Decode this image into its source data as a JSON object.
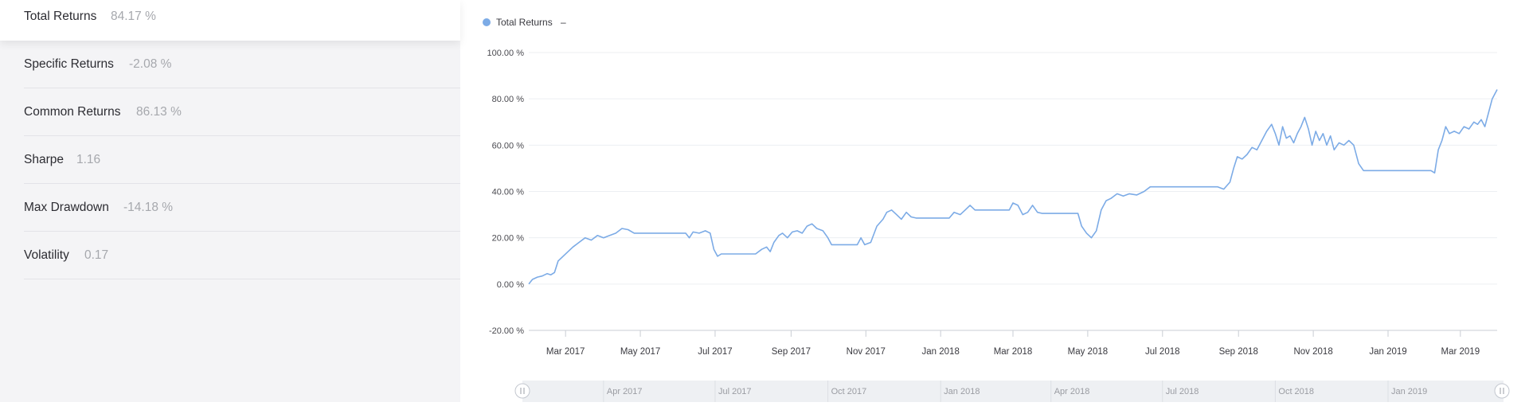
{
  "metrics": [
    {
      "label": "Total Returns",
      "value": "84.17 %"
    },
    {
      "label": "Specific Returns",
      "value": "-2.08 %"
    },
    {
      "label": "Common Returns",
      "value": "86.13 %"
    },
    {
      "label": "Sharpe",
      "value": "1.16"
    },
    {
      "label": "Max Drawdown",
      "value": "-14.18 %"
    },
    {
      "label": "Volatility",
      "value": "0.17"
    }
  ],
  "legend": {
    "label": "Total Returns",
    "suffix": "–"
  },
  "colors": {
    "series": "#7cabe6",
    "navigator": "#eef0f3",
    "grid": "#eceff2",
    "axis": "#c9cdd4"
  },
  "icons": {
    "legend_marker": "dot-icon",
    "handle": "drag-handle-icon"
  },
  "chart_data": {
    "type": "line",
    "title": "",
    "xlabel": "",
    "ylabel": "",
    "ylim": [
      -20,
      100
    ],
    "xlim": [
      "2017-01-30",
      "2019-03-31"
    ],
    "grid": true,
    "legend_position": "top-left",
    "y_ticks": [
      "100.00 %",
      "80.00 %",
      "60.00 %",
      "40.00 %",
      "20.00 %",
      "0.00 %",
      "-20.00 %"
    ],
    "y_tick_values": [
      100,
      80,
      60,
      40,
      20,
      0,
      -20
    ],
    "x_ticks": [
      {
        "date": "2017-03-01",
        "label": "Mar 2017"
      },
      {
        "date": "2017-05-01",
        "label": "May 2017"
      },
      {
        "date": "2017-07-01",
        "label": "Jul 2017"
      },
      {
        "date": "2017-09-01",
        "label": "Sep 2017"
      },
      {
        "date": "2017-11-01",
        "label": "Nov 2017"
      },
      {
        "date": "2018-01-01",
        "label": "Jan 2018"
      },
      {
        "date": "2018-03-01",
        "label": "Mar 2018"
      },
      {
        "date": "2018-05-01",
        "label": "May 2018"
      },
      {
        "date": "2018-07-01",
        "label": "Jul 2018"
      },
      {
        "date": "2018-09-01",
        "label": "Sep 2018"
      },
      {
        "date": "2018-11-01",
        "label": "Nov 2018"
      },
      {
        "date": "2019-01-01",
        "label": "Jan 2019"
      },
      {
        "date": "2019-03-01",
        "label": "Mar 2019"
      }
    ],
    "navigator_ticks": [
      {
        "date": "2017-04-01",
        "label": "Apr 2017"
      },
      {
        "date": "2017-07-01",
        "label": "Jul 2017"
      },
      {
        "date": "2017-10-01",
        "label": "Oct 2017"
      },
      {
        "date": "2018-01-01",
        "label": "Jan 2018"
      },
      {
        "date": "2018-04-01",
        "label": "Apr 2018"
      },
      {
        "date": "2018-07-01",
        "label": "Jul 2018"
      },
      {
        "date": "2018-10-01",
        "label": "Oct 2018"
      },
      {
        "date": "2019-01-01",
        "label": "Jan 2019"
      }
    ],
    "series": [
      {
        "name": "Total Returns",
        "color": "#7cabe6",
        "points": [
          [
            "2017-01-30",
            0
          ],
          [
            "2017-02-02",
            2
          ],
          [
            "2017-02-06",
            3
          ],
          [
            "2017-02-10",
            3.5
          ],
          [
            "2017-02-14",
            4.5
          ],
          [
            "2017-02-17",
            4
          ],
          [
            "2017-02-20",
            5
          ],
          [
            "2017-02-23",
            10
          ],
          [
            "2017-02-27",
            12
          ],
          [
            "2017-03-03",
            14
          ],
          [
            "2017-03-07",
            16
          ],
          [
            "2017-03-12",
            18
          ],
          [
            "2017-03-17",
            20
          ],
          [
            "2017-03-22",
            19
          ],
          [
            "2017-03-27",
            21
          ],
          [
            "2017-04-01",
            20
          ],
          [
            "2017-04-06",
            21
          ],
          [
            "2017-04-11",
            22
          ],
          [
            "2017-04-16",
            24
          ],
          [
            "2017-04-21",
            23.5
          ],
          [
            "2017-04-26",
            22
          ],
          [
            "2017-06-07",
            22
          ],
          [
            "2017-06-10",
            20
          ],
          [
            "2017-06-13",
            22.5
          ],
          [
            "2017-06-18",
            22
          ],
          [
            "2017-06-23",
            23
          ],
          [
            "2017-06-27",
            22
          ],
          [
            "2017-06-30",
            15
          ],
          [
            "2017-07-03",
            12
          ],
          [
            "2017-07-06",
            13
          ],
          [
            "2017-08-03",
            13
          ],
          [
            "2017-08-08",
            15
          ],
          [
            "2017-08-12",
            16
          ],
          [
            "2017-08-15",
            14
          ],
          [
            "2017-08-18",
            18
          ],
          [
            "2017-08-22",
            21
          ],
          [
            "2017-08-25",
            22
          ],
          [
            "2017-08-29",
            20
          ],
          [
            "2017-09-02",
            22.5
          ],
          [
            "2017-09-06",
            23
          ],
          [
            "2017-09-10",
            22
          ],
          [
            "2017-09-14",
            25
          ],
          [
            "2017-09-18",
            26
          ],
          [
            "2017-09-22",
            24
          ],
          [
            "2017-09-27",
            23
          ],
          [
            "2017-10-01",
            20
          ],
          [
            "2017-10-04",
            17
          ],
          [
            "2017-10-25",
            17
          ],
          [
            "2017-10-28",
            20
          ],
          [
            "2017-10-31",
            17
          ],
          [
            "2017-11-05",
            18
          ],
          [
            "2017-11-10",
            25
          ],
          [
            "2017-11-15",
            28
          ],
          [
            "2017-11-18",
            31
          ],
          [
            "2017-11-22",
            32
          ],
          [
            "2017-11-26",
            30
          ],
          [
            "2017-11-30",
            28
          ],
          [
            "2017-12-04",
            31
          ],
          [
            "2017-12-08",
            29
          ],
          [
            "2017-12-12",
            28.5
          ],
          [
            "2018-01-08",
            28.5
          ],
          [
            "2018-01-12",
            31
          ],
          [
            "2018-01-17",
            30
          ],
          [
            "2018-01-21",
            32
          ],
          [
            "2018-01-25",
            34
          ],
          [
            "2018-01-29",
            32
          ],
          [
            "2018-02-26",
            32
          ],
          [
            "2018-03-01",
            35
          ],
          [
            "2018-03-05",
            34
          ],
          [
            "2018-03-09",
            30
          ],
          [
            "2018-03-13",
            31
          ],
          [
            "2018-03-17",
            34
          ],
          [
            "2018-03-21",
            31
          ],
          [
            "2018-03-25",
            30.5
          ],
          [
            "2018-04-23",
            30.5
          ],
          [
            "2018-04-26",
            25
          ],
          [
            "2018-04-30",
            22
          ],
          [
            "2018-05-04",
            20
          ],
          [
            "2018-05-08",
            23
          ],
          [
            "2018-05-12",
            32
          ],
          [
            "2018-05-16",
            36
          ],
          [
            "2018-05-20",
            37
          ],
          [
            "2018-05-25",
            39
          ],
          [
            "2018-05-30",
            38
          ],
          [
            "2018-06-04",
            39
          ],
          [
            "2018-06-10",
            38.5
          ],
          [
            "2018-06-16",
            40
          ],
          [
            "2018-06-21",
            42
          ],
          [
            "2018-08-15",
            42
          ],
          [
            "2018-08-20",
            41
          ],
          [
            "2018-08-25",
            44
          ],
          [
            "2018-08-28",
            50
          ],
          [
            "2018-08-31",
            55
          ],
          [
            "2018-09-04",
            54
          ],
          [
            "2018-09-08",
            56
          ],
          [
            "2018-09-12",
            59
          ],
          [
            "2018-09-16",
            58
          ],
          [
            "2018-09-20",
            62
          ],
          [
            "2018-09-24",
            66
          ],
          [
            "2018-09-28",
            69
          ],
          [
            "2018-10-01",
            65
          ],
          [
            "2018-10-04",
            60
          ],
          [
            "2018-10-07",
            68
          ],
          [
            "2018-10-10",
            63
          ],
          [
            "2018-10-13",
            64
          ],
          [
            "2018-10-16",
            61
          ],
          [
            "2018-10-19",
            65
          ],
          [
            "2018-10-22",
            68
          ],
          [
            "2018-10-25",
            72
          ],
          [
            "2018-10-28",
            67
          ],
          [
            "2018-10-31",
            60
          ],
          [
            "2018-11-03",
            66
          ],
          [
            "2018-11-06",
            62
          ],
          [
            "2018-11-09",
            65
          ],
          [
            "2018-11-12",
            60
          ],
          [
            "2018-11-15",
            64
          ],
          [
            "2018-11-18",
            58
          ],
          [
            "2018-11-22",
            61
          ],
          [
            "2018-11-26",
            60
          ],
          [
            "2018-11-30",
            62
          ],
          [
            "2018-12-04",
            60
          ],
          [
            "2018-12-08",
            52
          ],
          [
            "2018-12-12",
            49
          ],
          [
            "2019-02-05",
            49
          ],
          [
            "2019-02-08",
            48
          ],
          [
            "2019-02-11",
            58
          ],
          [
            "2019-02-14",
            62
          ],
          [
            "2019-02-17",
            68
          ],
          [
            "2019-02-20",
            65
          ],
          [
            "2019-02-24",
            66
          ],
          [
            "2019-02-28",
            65
          ],
          [
            "2019-03-04",
            68
          ],
          [
            "2019-03-08",
            67
          ],
          [
            "2019-03-12",
            70
          ],
          [
            "2019-03-15",
            69
          ],
          [
            "2019-03-18",
            71
          ],
          [
            "2019-03-21",
            68
          ],
          [
            "2019-03-24",
            74
          ],
          [
            "2019-03-27",
            80
          ],
          [
            "2019-03-29",
            82
          ],
          [
            "2019-03-31",
            84
          ]
        ]
      }
    ]
  }
}
